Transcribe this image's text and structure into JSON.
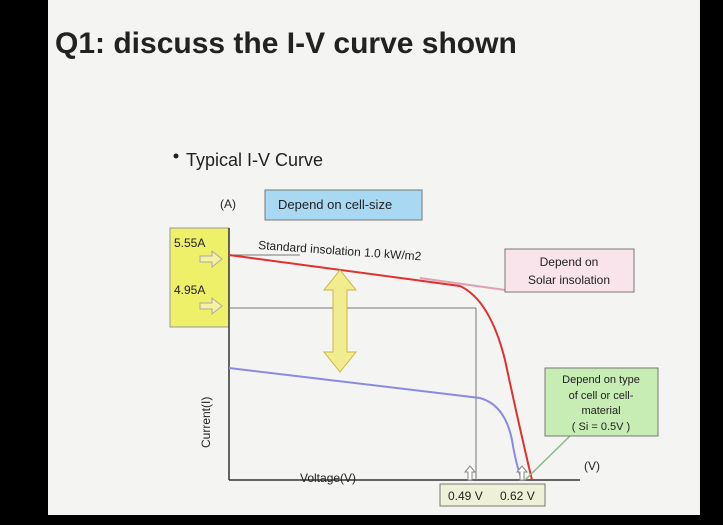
{
  "header": {
    "title": "Q1: discuss the I-V curve shown"
  },
  "bullet": "Typical I-V Curve",
  "diagram": {
    "y_unit": "(A)",
    "x_unit": "(V)",
    "y_axis_label": "Current(I)",
    "x_axis_label": "Voltage(V)",
    "current_labels": [
      "5.55A",
      "4.95A"
    ],
    "voltage_labels": [
      "0.49 V",
      "0.62 V"
    ],
    "curve_label": "Standard insolation 1.0 kW/m2",
    "notes": [
      {
        "lines": [
          "Depend on cell-size"
        ]
      },
      {
        "lines": [
          "Depend on",
          "Solar insolation"
        ]
      },
      {
        "lines": [
          "Depend on type",
          "of cell or cell-",
          "material",
          "( Si = 0.5V )"
        ]
      }
    ]
  }
}
